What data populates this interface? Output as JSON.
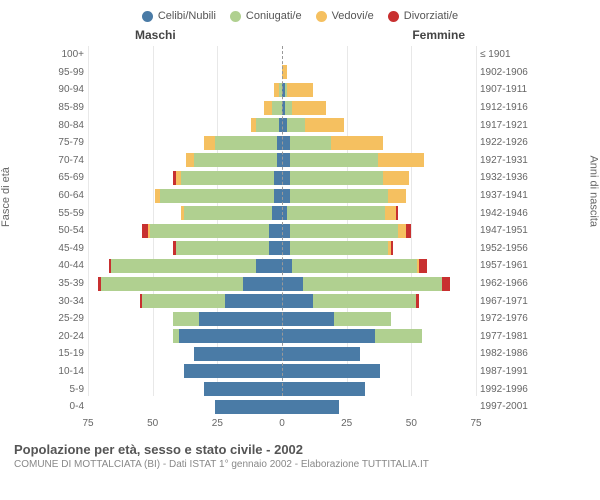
{
  "legend": [
    {
      "label": "Celibi/Nubili",
      "color": "#4a7ba6"
    },
    {
      "label": "Coniugati/e",
      "color": "#b0d090"
    },
    {
      "label": "Vedovi/e",
      "color": "#f5c060"
    },
    {
      "label": "Divorziati/e",
      "color": "#c83030"
    }
  ],
  "headers": {
    "male": "Maschi",
    "female": "Femmine"
  },
  "axis_labels": {
    "left": "Fasce di età",
    "right": "Anni di nascita"
  },
  "x_axis": {
    "max": 75,
    "ticks": [
      75,
      50,
      25,
      0,
      25,
      50,
      75
    ]
  },
  "colors": {
    "celibe": "#4a7ba6",
    "coniugato": "#b0d090",
    "vedovo": "#f5c060",
    "divorziato": "#c83030",
    "grid": "#e8e8e8",
    "center_dash": "#999"
  },
  "footer": {
    "title": "Popolazione per età, sesso e stato civile - 2002",
    "sub": "COMUNE DI MOTTALCIATA (BI) - Dati ISTAT 1° gennaio 2002 - Elaborazione TUTTITALIA.IT"
  },
  "rows": [
    {
      "age": "100+",
      "birth": "≤ 1901",
      "m": {
        "c": 0,
        "co": 0,
        "v": 0,
        "d": 0
      },
      "f": {
        "c": 0,
        "co": 0,
        "v": 0,
        "d": 0
      }
    },
    {
      "age": "95-99",
      "birth": "1902-1906",
      "m": {
        "c": 0,
        "co": 0,
        "v": 0,
        "d": 0
      },
      "f": {
        "c": 0,
        "co": 0,
        "v": 2,
        "d": 0
      }
    },
    {
      "age": "90-94",
      "birth": "1907-1911",
      "m": {
        "c": 0,
        "co": 1,
        "v": 2,
        "d": 0
      },
      "f": {
        "c": 1,
        "co": 1,
        "v": 10,
        "d": 0
      }
    },
    {
      "age": "85-89",
      "birth": "1912-1916",
      "m": {
        "c": 0,
        "co": 4,
        "v": 3,
        "d": 0
      },
      "f": {
        "c": 1,
        "co": 3,
        "v": 13,
        "d": 0
      }
    },
    {
      "age": "80-84",
      "birth": "1917-1921",
      "m": {
        "c": 1,
        "co": 9,
        "v": 2,
        "d": 0
      },
      "f": {
        "c": 2,
        "co": 7,
        "v": 15,
        "d": 0
      }
    },
    {
      "age": "75-79",
      "birth": "1922-1926",
      "m": {
        "c": 2,
        "co": 24,
        "v": 4,
        "d": 0
      },
      "f": {
        "c": 3,
        "co": 16,
        "v": 20,
        "d": 0
      }
    },
    {
      "age": "70-74",
      "birth": "1927-1931",
      "m": {
        "c": 2,
        "co": 32,
        "v": 3,
        "d": 0
      },
      "f": {
        "c": 3,
        "co": 34,
        "v": 18,
        "d": 0
      }
    },
    {
      "age": "65-69",
      "birth": "1932-1936",
      "m": {
        "c": 3,
        "co": 36,
        "v": 2,
        "d": 1
      },
      "f": {
        "c": 3,
        "co": 36,
        "v": 10,
        "d": 0
      }
    },
    {
      "age": "60-64",
      "birth": "1937-1941",
      "m": {
        "c": 3,
        "co": 44,
        "v": 2,
        "d": 0
      },
      "f": {
        "c": 3,
        "co": 38,
        "v": 7,
        "d": 0
      }
    },
    {
      "age": "55-59",
      "birth": "1942-1946",
      "m": {
        "c": 4,
        "co": 34,
        "v": 1,
        "d": 0
      },
      "f": {
        "c": 2,
        "co": 38,
        "v": 4,
        "d": 1
      }
    },
    {
      "age": "50-54",
      "birth": "1947-1951",
      "m": {
        "c": 5,
        "co": 46,
        "v": 1,
        "d": 2
      },
      "f": {
        "c": 3,
        "co": 42,
        "v": 3,
        "d": 2
      }
    },
    {
      "age": "45-49",
      "birth": "1952-1956",
      "m": {
        "c": 5,
        "co": 36,
        "v": 0,
        "d": 1
      },
      "f": {
        "c": 3,
        "co": 38,
        "v": 1,
        "d": 1
      }
    },
    {
      "age": "40-44",
      "birth": "1957-1961",
      "m": {
        "c": 10,
        "co": 56,
        "v": 0,
        "d": 1
      },
      "f": {
        "c": 4,
        "co": 48,
        "v": 1,
        "d": 3
      }
    },
    {
      "age": "35-39",
      "birth": "1962-1966",
      "m": {
        "c": 15,
        "co": 55,
        "v": 0,
        "d": 1
      },
      "f": {
        "c": 8,
        "co": 54,
        "v": 0,
        "d": 3
      }
    },
    {
      "age": "30-34",
      "birth": "1967-1971",
      "m": {
        "c": 22,
        "co": 32,
        "v": 0,
        "d": 1
      },
      "f": {
        "c": 12,
        "co": 40,
        "v": 0,
        "d": 1
      }
    },
    {
      "age": "25-29",
      "birth": "1972-1976",
      "m": {
        "c": 32,
        "co": 10,
        "v": 0,
        "d": 0
      },
      "f": {
        "c": 20,
        "co": 22,
        "v": 0,
        "d": 0
      }
    },
    {
      "age": "20-24",
      "birth": "1977-1981",
      "m": {
        "c": 40,
        "co": 2,
        "v": 0,
        "d": 0
      },
      "f": {
        "c": 36,
        "co": 18,
        "v": 0,
        "d": 0
      }
    },
    {
      "age": "15-19",
      "birth": "1982-1986",
      "m": {
        "c": 34,
        "co": 0,
        "v": 0,
        "d": 0
      },
      "f": {
        "c": 30,
        "co": 0,
        "v": 0,
        "d": 0
      }
    },
    {
      "age": "10-14",
      "birth": "1987-1991",
      "m": {
        "c": 38,
        "co": 0,
        "v": 0,
        "d": 0
      },
      "f": {
        "c": 38,
        "co": 0,
        "v": 0,
        "d": 0
      }
    },
    {
      "age": "5-9",
      "birth": "1992-1996",
      "m": {
        "c": 30,
        "co": 0,
        "v": 0,
        "d": 0
      },
      "f": {
        "c": 32,
        "co": 0,
        "v": 0,
        "d": 0
      }
    },
    {
      "age": "0-4",
      "birth": "1997-2001",
      "m": {
        "c": 26,
        "co": 0,
        "v": 0,
        "d": 0
      },
      "f": {
        "c": 22,
        "co": 0,
        "v": 0,
        "d": 0
      }
    }
  ]
}
